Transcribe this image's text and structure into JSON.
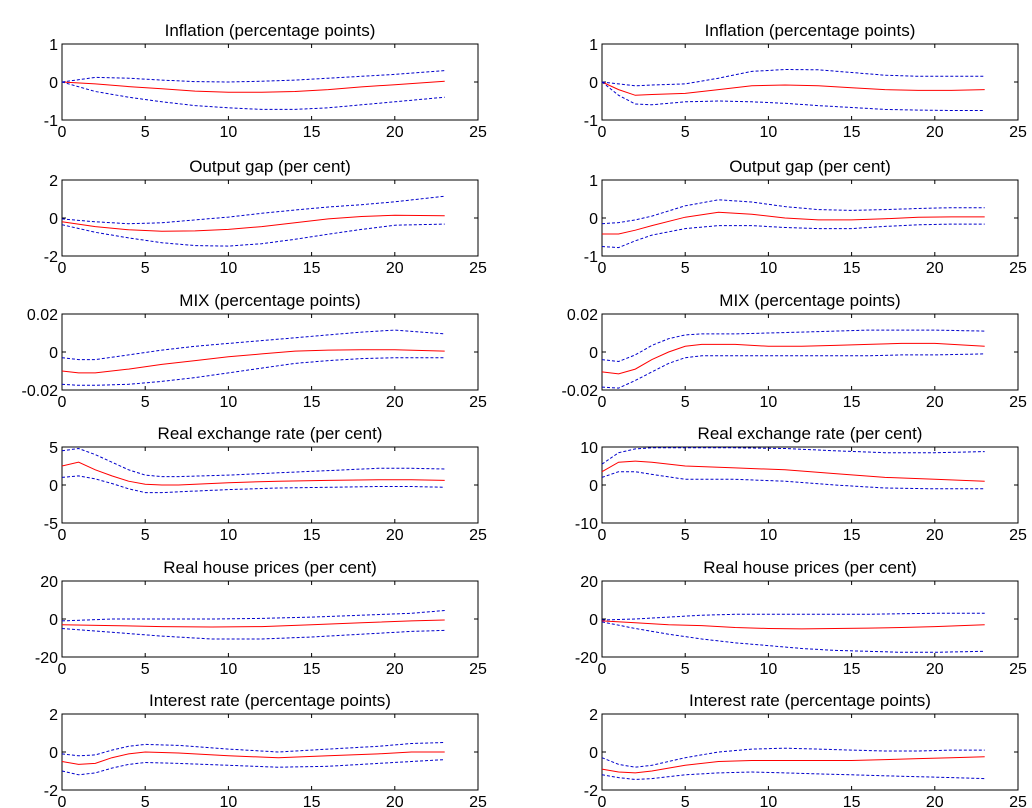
{
  "chart_data": [
    {
      "type": "line",
      "title": "Inflation (percentage points)",
      "xlim": [
        0,
        25
      ],
      "ylim": [
        -1,
        1
      ],
      "xticks": [
        "0",
        "5",
        "10",
        "15",
        "20",
        "25"
      ],
      "yticks": [
        "-1",
        "0",
        "1"
      ],
      "x": [
        0,
        2,
        4,
        6,
        8,
        10,
        12,
        14,
        16,
        18,
        20,
        23
      ],
      "series": [
        {
          "role": "median",
          "color": "#ff0000",
          "style": "solid",
          "values": [
            0,
            -0.05,
            -0.12,
            -0.18,
            -0.24,
            -0.27,
            -0.27,
            -0.25,
            -0.2,
            -0.13,
            -0.07,
            0.02
          ]
        },
        {
          "role": "upper",
          "color": "#0000cc",
          "style": "dashed",
          "values": [
            0,
            0.12,
            0.1,
            0.05,
            0.01,
            0,
            0.02,
            0.05,
            0.1,
            0.15,
            0.2,
            0.3
          ]
        },
        {
          "role": "lower",
          "color": "#0000cc",
          "style": "dashed",
          "values": [
            0,
            -0.25,
            -0.4,
            -0.52,
            -0.62,
            -0.68,
            -0.72,
            -0.72,
            -0.68,
            -0.6,
            -0.52,
            -0.4
          ]
        }
      ]
    },
    {
      "type": "line",
      "title": "Inflation (percentage points)",
      "xlim": [
        0,
        25
      ],
      "ylim": [
        -1,
        1
      ],
      "xticks": [
        "0",
        "5",
        "10",
        "15",
        "20",
        "25"
      ],
      "yticks": [
        "-1",
        "0",
        "1"
      ],
      "x": [
        0,
        1,
        2,
        3,
        5,
        7,
        9,
        11,
        13,
        15,
        17,
        19,
        21,
        23
      ],
      "series": [
        {
          "role": "median",
          "color": "#ff0000",
          "style": "solid",
          "values": [
            0,
            -0.2,
            -0.35,
            -0.33,
            -0.3,
            -0.2,
            -0.1,
            -0.08,
            -0.1,
            -0.15,
            -0.2,
            -0.22,
            -0.22,
            -0.2
          ]
        },
        {
          "role": "upper",
          "color": "#0000cc",
          "style": "dashed",
          "values": [
            0,
            -0.05,
            -0.1,
            -0.08,
            -0.05,
            0.1,
            0.28,
            0.33,
            0.32,
            0.25,
            0.18,
            0.15,
            0.15,
            0.15
          ]
        },
        {
          "role": "lower",
          "color": "#0000cc",
          "style": "dashed",
          "values": [
            0,
            -0.35,
            -0.58,
            -0.6,
            -0.52,
            -0.5,
            -0.52,
            -0.56,
            -0.62,
            -0.67,
            -0.72,
            -0.74,
            -0.75,
            -0.75
          ]
        }
      ]
    },
    {
      "type": "line",
      "title": "Output gap (per cent)",
      "xlim": [
        0,
        25
      ],
      "ylim": [
        -2,
        2
      ],
      "xticks": [
        "0",
        "5",
        "10",
        "15",
        "20",
        "25"
      ],
      "yticks": [
        "-2",
        "0",
        "2"
      ],
      "x": [
        0,
        2,
        4,
        6,
        8,
        10,
        12,
        14,
        16,
        18,
        20,
        23
      ],
      "series": [
        {
          "role": "median",
          "color": "#ff0000",
          "style": "solid",
          "values": [
            -0.2,
            -0.45,
            -0.62,
            -0.7,
            -0.68,
            -0.6,
            -0.45,
            -0.25,
            -0.05,
            0.08,
            0.15,
            0.12
          ]
        },
        {
          "role": "upper",
          "color": "#0000cc",
          "style": "dashed",
          "values": [
            -0.05,
            -0.2,
            -0.3,
            -0.25,
            -0.1,
            0.05,
            0.25,
            0.42,
            0.58,
            0.7,
            0.85,
            1.15
          ]
        },
        {
          "role": "lower",
          "color": "#0000cc",
          "style": "dashed",
          "values": [
            -0.35,
            -0.75,
            -1.05,
            -1.3,
            -1.45,
            -1.48,
            -1.35,
            -1.12,
            -0.85,
            -0.6,
            -0.38,
            -0.32
          ]
        }
      ]
    },
    {
      "type": "line",
      "title": "Output gap (per cent)",
      "xlim": [
        0,
        25
      ],
      "ylim": [
        -1,
        1
      ],
      "xticks": [
        "0",
        "5",
        "10",
        "15",
        "20",
        "25"
      ],
      "yticks": [
        "-1",
        "0",
        "1"
      ],
      "x": [
        0,
        1,
        2,
        3,
        5,
        7,
        9,
        11,
        13,
        15,
        17,
        19,
        21,
        23
      ],
      "series": [
        {
          "role": "median",
          "color": "#ff0000",
          "style": "solid",
          "values": [
            -0.42,
            -0.42,
            -0.32,
            -0.2,
            0.02,
            0.15,
            0.1,
            0,
            -0.05,
            -0.05,
            -0.02,
            0.02,
            0.03,
            0.03
          ]
        },
        {
          "role": "upper",
          "color": "#0000cc",
          "style": "dashed",
          "values": [
            -0.15,
            -0.12,
            -0.05,
            0.05,
            0.32,
            0.48,
            0.42,
            0.3,
            0.22,
            0.2,
            0.22,
            0.25,
            0.27,
            0.27
          ]
        },
        {
          "role": "lower",
          "color": "#0000cc",
          "style": "dashed",
          "values": [
            -0.75,
            -0.78,
            -0.6,
            -0.45,
            -0.28,
            -0.2,
            -0.2,
            -0.25,
            -0.28,
            -0.28,
            -0.22,
            -0.18,
            -0.16,
            -0.16
          ]
        }
      ]
    },
    {
      "type": "line",
      "title": "MIX (percentage points)",
      "xlim": [
        0,
        25
      ],
      "ylim": [
        -0.02,
        0.02
      ],
      "xticks": [
        "0",
        "5",
        "10",
        "15",
        "20",
        "25"
      ],
      "yticks": [
        "-0.02",
        "0",
        "0.02"
      ],
      "x": [
        0,
        1,
        2,
        4,
        6,
        8,
        10,
        12,
        14,
        16,
        18,
        20,
        23
      ],
      "series": [
        {
          "role": "median",
          "color": "#ff0000",
          "style": "solid",
          "values": [
            -0.01,
            -0.011,
            -0.011,
            -0.009,
            -0.0065,
            -0.0045,
            -0.0025,
            -0.001,
            0.0005,
            0.001,
            0.0012,
            0.0012,
            0.0005
          ]
        },
        {
          "role": "upper",
          "color": "#0000cc",
          "style": "dashed",
          "values": [
            -0.003,
            -0.004,
            -0.004,
            -0.0015,
            0.001,
            0.003,
            0.0045,
            0.006,
            0.0075,
            0.009,
            0.0105,
            0.0115,
            0.0095
          ]
        },
        {
          "role": "lower",
          "color": "#0000cc",
          "style": "dashed",
          "values": [
            -0.017,
            -0.0175,
            -0.0175,
            -0.017,
            -0.0155,
            -0.0135,
            -0.011,
            -0.0085,
            -0.006,
            -0.0045,
            -0.0035,
            -0.003,
            -0.003
          ]
        }
      ]
    },
    {
      "type": "line",
      "title": "MIX (percentage points)",
      "xlim": [
        0,
        25
      ],
      "ylim": [
        -0.02,
        0.02
      ],
      "xticks": [
        "0",
        "5",
        "10",
        "15",
        "20",
        "25"
      ],
      "yticks": [
        "-0.02",
        "0",
        "0.02"
      ],
      "x": [
        0,
        1,
        2,
        3,
        4,
        5,
        6,
        8,
        10,
        12,
        14,
        16,
        18,
        20,
        23
      ],
      "series": [
        {
          "role": "median",
          "color": "#ff0000",
          "style": "solid",
          "values": [
            -0.0105,
            -0.0115,
            -0.009,
            -0.004,
            0,
            0.003,
            0.004,
            0.004,
            0.003,
            0.003,
            0.0035,
            0.004,
            0.0045,
            0.0045,
            0.003
          ]
        },
        {
          "role": "upper",
          "color": "#0000cc",
          "style": "dashed",
          "values": [
            -0.004,
            -0.005,
            -0.0015,
            0.0035,
            0.007,
            0.009,
            0.0095,
            0.0095,
            0.01,
            0.0105,
            0.011,
            0.0115,
            0.0115,
            0.0115,
            0.011
          ]
        },
        {
          "role": "lower",
          "color": "#0000cc",
          "style": "dashed",
          "values": [
            -0.0185,
            -0.019,
            -0.015,
            -0.0105,
            -0.006,
            -0.003,
            -0.002,
            -0.002,
            -0.002,
            -0.002,
            -0.002,
            -0.002,
            -0.0015,
            -0.0015,
            -0.001
          ]
        }
      ]
    },
    {
      "type": "line",
      "title": "Real exchange rate (per cent)",
      "xlim": [
        0,
        25
      ],
      "ylim": [
        -5,
        5
      ],
      "xticks": [
        "0",
        "5",
        "10",
        "15",
        "20",
        "25"
      ],
      "yticks": [
        "-5",
        "0",
        "5"
      ],
      "x": [
        0,
        1,
        2,
        3,
        4,
        5,
        6,
        7,
        10,
        13,
        16,
        19,
        21,
        23
      ],
      "series": [
        {
          "role": "median",
          "color": "#ff0000",
          "style": "solid",
          "values": [
            2.5,
            3,
            2,
            1.2,
            0.5,
            0.1,
            0,
            0,
            0.3,
            0.5,
            0.6,
            0.7,
            0.7,
            0.6
          ]
        },
        {
          "role": "upper",
          "color": "#0000cc",
          "style": "dashed",
          "values": [
            4.5,
            4.8,
            4,
            3,
            2,
            1.3,
            1.1,
            1.1,
            1.3,
            1.6,
            1.9,
            2.2,
            2.2,
            2.1
          ]
        },
        {
          "role": "lower",
          "color": "#0000cc",
          "style": "dashed",
          "values": [
            1,
            1.2,
            0.8,
            0.2,
            -0.5,
            -1,
            -1,
            -0.9,
            -0.6,
            -0.4,
            -0.3,
            -0.2,
            -0.2,
            -0.3
          ]
        }
      ]
    },
    {
      "type": "line",
      "title": "Real exchange rate (per cent)",
      "xlim": [
        0,
        25
      ],
      "ylim": [
        -10,
        10
      ],
      "xticks": [
        "0",
        "5",
        "10",
        "15",
        "20",
        "25"
      ],
      "yticks": [
        "-10",
        "0",
        "10"
      ],
      "x": [
        0,
        1,
        2,
        3,
        5,
        8,
        11,
        14,
        17,
        20,
        23
      ],
      "series": [
        {
          "role": "median",
          "color": "#ff0000",
          "style": "solid",
          "values": [
            3.5,
            6,
            6.3,
            6,
            5,
            4.5,
            4,
            3,
            2,
            1.5,
            1
          ]
        },
        {
          "role": "upper",
          "color": "#0000cc",
          "style": "dashed",
          "values": [
            5.5,
            8.5,
            9.5,
            9.8,
            9.8,
            9.8,
            9.6,
            9,
            8.5,
            8.5,
            8.8
          ]
        },
        {
          "role": "lower",
          "color": "#0000cc",
          "style": "dashed",
          "values": [
            2,
            3.5,
            3.5,
            2.8,
            1.5,
            1.5,
            1,
            0,
            -0.8,
            -1,
            -1
          ]
        }
      ]
    },
    {
      "type": "line",
      "title": "Real house prices (per cent)",
      "xlim": [
        0,
        25
      ],
      "ylim": [
        -20,
        20
      ],
      "xticks": [
        "0",
        "5",
        "10",
        "15",
        "20",
        "25"
      ],
      "yticks": [
        "-20",
        "0",
        "20"
      ],
      "x": [
        0,
        3,
        6,
        9,
        12,
        15,
        18,
        21,
        23
      ],
      "series": [
        {
          "role": "median",
          "color": "#ff0000",
          "style": "solid",
          "values": [
            -3,
            -3.5,
            -4,
            -4.2,
            -4,
            -3,
            -2,
            -1,
            -0.5
          ]
        },
        {
          "role": "upper",
          "color": "#0000cc",
          "style": "dashed",
          "values": [
            -1,
            0,
            0,
            0,
            0.3,
            1,
            2,
            3,
            4.5
          ]
        },
        {
          "role": "lower",
          "color": "#0000cc",
          "style": "dashed",
          "values": [
            -5,
            -7,
            -9,
            -10.5,
            -10.5,
            -9.5,
            -8,
            -6.5,
            -6
          ]
        }
      ]
    },
    {
      "type": "line",
      "title": "Real house prices (per cent)",
      "xlim": [
        0,
        25
      ],
      "ylim": [
        -20,
        20
      ],
      "xticks": [
        "0",
        "5",
        "10",
        "15",
        "20",
        "25"
      ],
      "yticks": [
        "-20",
        "0",
        "20"
      ],
      "x": [
        0,
        2,
        4,
        6,
        8,
        10,
        12,
        14,
        16,
        18,
        20,
        23
      ],
      "series": [
        {
          "role": "median",
          "color": "#ff0000",
          "style": "solid",
          "values": [
            -1,
            -2,
            -3,
            -3.5,
            -4.5,
            -5,
            -5.2,
            -5,
            -4.8,
            -4.5,
            -4,
            -3
          ]
        },
        {
          "role": "upper",
          "color": "#0000cc",
          "style": "dashed",
          "values": [
            -0.5,
            0,
            1,
            2,
            2.5,
            2.5,
            2.5,
            2.5,
            2.5,
            2.8,
            3,
            3
          ]
        },
        {
          "role": "lower",
          "color": "#0000cc",
          "style": "dashed",
          "values": [
            -1.5,
            -5,
            -8,
            -10.5,
            -12.5,
            -14,
            -15.5,
            -16.5,
            -17,
            -17.5,
            -17.5,
            -17
          ]
        }
      ]
    },
    {
      "type": "line",
      "title": "Interest rate (percentage points)",
      "xlim": [
        0,
        25
      ],
      "ylim": [
        -2,
        2
      ],
      "xticks": [
        "0",
        "5",
        "10",
        "15",
        "20",
        "25"
      ],
      "yticks": [
        "-2",
        "0",
        "2"
      ],
      "x": [
        0,
        1,
        2,
        3,
        4,
        5,
        7,
        10,
        13,
        16,
        19,
        21,
        23
      ],
      "series": [
        {
          "role": "median",
          "color": "#ff0000",
          "style": "solid",
          "values": [
            -0.5,
            -0.65,
            -0.6,
            -0.3,
            -0.1,
            0,
            -0.05,
            -0.2,
            -0.3,
            -0.2,
            -0.1,
            0,
            0
          ]
        },
        {
          "role": "upper",
          "color": "#0000cc",
          "style": "dashed",
          "values": [
            -0.1,
            -0.2,
            -0.15,
            0.1,
            0.3,
            0.4,
            0.35,
            0.15,
            0,
            0.15,
            0.3,
            0.45,
            0.5
          ]
        },
        {
          "role": "lower",
          "color": "#0000cc",
          "style": "dashed",
          "values": [
            -1,
            -1.2,
            -1.1,
            -0.85,
            -0.65,
            -0.55,
            -0.6,
            -0.7,
            -0.8,
            -0.75,
            -0.6,
            -0.5,
            -0.4
          ]
        }
      ]
    },
    {
      "type": "line",
      "title": "Interest rate (percentage points)",
      "xlim": [
        0,
        25
      ],
      "ylim": [
        -2,
        2
      ],
      "xticks": [
        "0",
        "5",
        "10",
        "15",
        "20",
        "25"
      ],
      "yticks": [
        "-2",
        "0",
        "2"
      ],
      "x": [
        0,
        1,
        2,
        3,
        5,
        7,
        9,
        11,
        13,
        15,
        17,
        19,
        21,
        23
      ],
      "series": [
        {
          "role": "median",
          "color": "#ff0000",
          "style": "solid",
          "values": [
            -0.9,
            -1.05,
            -1.1,
            -1,
            -0.7,
            -0.5,
            -0.45,
            -0.45,
            -0.45,
            -0.45,
            -0.4,
            -0.35,
            -0.3,
            -0.25
          ]
        },
        {
          "role": "upper",
          "color": "#0000cc",
          "style": "dashed",
          "values": [
            -0.3,
            -0.65,
            -0.8,
            -0.7,
            -0.3,
            0,
            0.15,
            0.2,
            0.15,
            0.1,
            0.05,
            0.05,
            0.1,
            0.1
          ]
        },
        {
          "role": "lower",
          "color": "#0000cc",
          "style": "dashed",
          "values": [
            -1.2,
            -1.35,
            -1.45,
            -1.4,
            -1.2,
            -1.1,
            -1.05,
            -1.1,
            -1.15,
            -1.2,
            -1.25,
            -1.3,
            -1.35,
            -1.4
          ]
        }
      ]
    }
  ]
}
